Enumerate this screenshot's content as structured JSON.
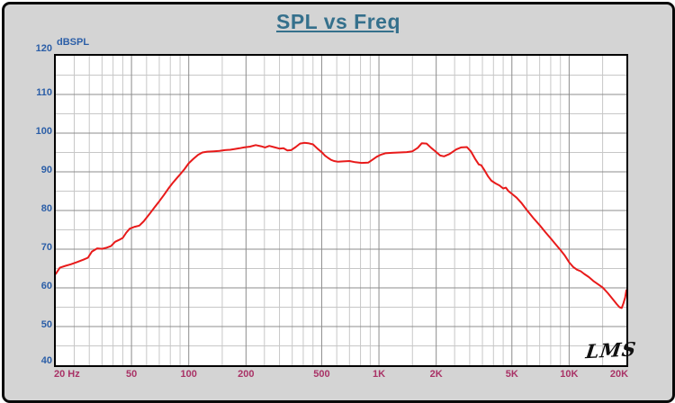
{
  "window": {
    "title": "SPL vs Freq"
  },
  "chart_data": {
    "type": "line",
    "title": "SPL vs Freq",
    "ylabel": "dBSPL",
    "x_scale": "log",
    "xlim": [
      20,
      20000
    ],
    "ylim": [
      40,
      120
    ],
    "grid": true,
    "legend": "none",
    "logo_label": "LMS",
    "y_major_ticks": [
      120,
      110,
      100,
      90,
      80,
      70,
      60,
      50,
      40
    ],
    "y_minor_ticks": [
      115,
      105,
      95,
      85,
      75,
      65,
      55,
      45
    ],
    "x_tick_labels": [
      {
        "value": 20,
        "label": "20 Hz"
      },
      {
        "value": 50,
        "label": "50"
      },
      {
        "value": 100,
        "label": "100"
      },
      {
        "value": 200,
        "label": "200"
      },
      {
        "value": 500,
        "label": "500"
      },
      {
        "value": 1000,
        "label": "1K"
      },
      {
        "value": 2000,
        "label": "2K"
      },
      {
        "value": 5000,
        "label": "5K"
      },
      {
        "value": 10000,
        "label": "10K"
      },
      {
        "value": 20000,
        "label": "20K"
      }
    ],
    "x_major_gridlines": [
      50,
      100,
      200,
      500,
      1000,
      2000,
      5000,
      10000
    ],
    "x_minor_gridlines": [
      25,
      30,
      35,
      40,
      45,
      60,
      70,
      80,
      90,
      150,
      250,
      300,
      350,
      400,
      450,
      600,
      700,
      800,
      900,
      1500,
      2500,
      3000,
      3500,
      4000,
      4500,
      6000,
      7000,
      8000,
      9000,
      15000
    ],
    "colors": {
      "title": "#35708c",
      "y_labels": "#2b5ea7",
      "x_labels": "#a93266",
      "grid_minor": "#c7c7c7",
      "grid_major": "#8c8c8c",
      "curve": "#e81a1a",
      "background": "#d4d4d4",
      "plot_background": "#ffffff"
    },
    "series": [
      {
        "name": "SPL",
        "color": "#e81a1a",
        "points": [
          [
            20,
            63.6
          ],
          [
            21,
            65.2
          ],
          [
            22.5,
            65.7
          ],
          [
            24,
            66.1
          ],
          [
            26,
            66.7
          ],
          [
            28,
            67.3
          ],
          [
            29.5,
            67.8
          ],
          [
            31,
            69.4
          ],
          [
            33,
            70.2
          ],
          [
            35,
            70.1
          ],
          [
            37,
            70.4
          ],
          [
            39,
            70.8
          ],
          [
            41,
            71.9
          ],
          [
            43,
            72.4
          ],
          [
            45,
            72.9
          ],
          [
            47,
            74.3
          ],
          [
            49,
            75.3
          ],
          [
            52,
            75.8
          ],
          [
            55,
            76.1
          ],
          [
            58,
            77.2
          ],
          [
            62,
            79.0
          ],
          [
            66,
            80.8
          ],
          [
            70,
            82.4
          ],
          [
            74,
            84.0
          ],
          [
            78,
            85.6
          ],
          [
            82,
            87.0
          ],
          [
            86,
            88.2
          ],
          [
            90,
            89.3
          ],
          [
            95,
            90.7
          ],
          [
            100,
            92.2
          ],
          [
            106,
            93.4
          ],
          [
            112,
            94.4
          ],
          [
            118,
            95.0
          ],
          [
            125,
            95.2
          ],
          [
            135,
            95.3
          ],
          [
            145,
            95.4
          ],
          [
            155,
            95.6
          ],
          [
            165,
            95.7
          ],
          [
            175,
            95.9
          ],
          [
            185,
            96.1
          ],
          [
            195,
            96.3
          ],
          [
            210,
            96.5
          ],
          [
            225,
            96.9
          ],
          [
            240,
            96.6
          ],
          [
            252,
            96.3
          ],
          [
            265,
            96.7
          ],
          [
            280,
            96.4
          ],
          [
            300,
            96.0
          ],
          [
            315,
            96.1
          ],
          [
            330,
            95.5
          ],
          [
            345,
            95.6
          ],
          [
            365,
            96.4
          ],
          [
            385,
            97.3
          ],
          [
            405,
            97.5
          ],
          [
            425,
            97.4
          ],
          [
            450,
            97.1
          ],
          [
            475,
            96.0
          ],
          [
            500,
            95.1
          ],
          [
            520,
            94.2
          ],
          [
            540,
            93.6
          ],
          [
            560,
            93.1
          ],
          [
            580,
            92.8
          ],
          [
            610,
            92.6
          ],
          [
            650,
            92.7
          ],
          [
            700,
            92.8
          ],
          [
            750,
            92.5
          ],
          [
            810,
            92.3
          ],
          [
            880,
            92.4
          ],
          [
            930,
            93.2
          ],
          [
            975,
            93.9
          ],
          [
            1020,
            94.4
          ],
          [
            1080,
            94.8
          ],
          [
            1170,
            94.9
          ],
          [
            1280,
            95.0
          ],
          [
            1400,
            95.1
          ],
          [
            1500,
            95.3
          ],
          [
            1600,
            96.2
          ],
          [
            1680,
            97.4
          ],
          [
            1780,
            97.3
          ],
          [
            1880,
            96.2
          ],
          [
            1990,
            95.2
          ],
          [
            2100,
            94.2
          ],
          [
            2200,
            94.0
          ],
          [
            2350,
            94.6
          ],
          [
            2550,
            95.8
          ],
          [
            2700,
            96.3
          ],
          [
            2900,
            96.4
          ],
          [
            3050,
            95.2
          ],
          [
            3200,
            93.4
          ],
          [
            3350,
            91.9
          ],
          [
            3450,
            91.7
          ],
          [
            3600,
            90.3
          ],
          [
            3750,
            88.8
          ],
          [
            3900,
            87.7
          ],
          [
            4100,
            87.0
          ],
          [
            4300,
            86.5
          ],
          [
            4500,
            85.7
          ],
          [
            4650,
            85.9
          ],
          [
            4800,
            85.0
          ],
          [
            5000,
            84.3
          ],
          [
            5300,
            83.3
          ],
          [
            5600,
            82.0
          ],
          [
            6000,
            80.1
          ],
          [
            6500,
            78.0
          ],
          [
            7000,
            76.2
          ],
          [
            7500,
            74.4
          ],
          [
            8000,
            72.8
          ],
          [
            8500,
            71.2
          ],
          [
            9000,
            69.8
          ],
          [
            9500,
            68.3
          ],
          [
            10000,
            66.6
          ],
          [
            10500,
            65.4
          ],
          [
            11000,
            64.7
          ],
          [
            11500,
            64.3
          ],
          [
            12000,
            63.6
          ],
          [
            12700,
            62.8
          ],
          [
            13400,
            61.8
          ],
          [
            14200,
            60.9
          ],
          [
            15000,
            60.1
          ],
          [
            16000,
            58.6
          ],
          [
            17000,
            57.0
          ],
          [
            17800,
            55.8
          ],
          [
            18400,
            55.0
          ],
          [
            18900,
            54.8
          ],
          [
            19300,
            56.0
          ],
          [
            19700,
            57.5
          ],
          [
            20000,
            59.4
          ]
        ]
      }
    ]
  }
}
